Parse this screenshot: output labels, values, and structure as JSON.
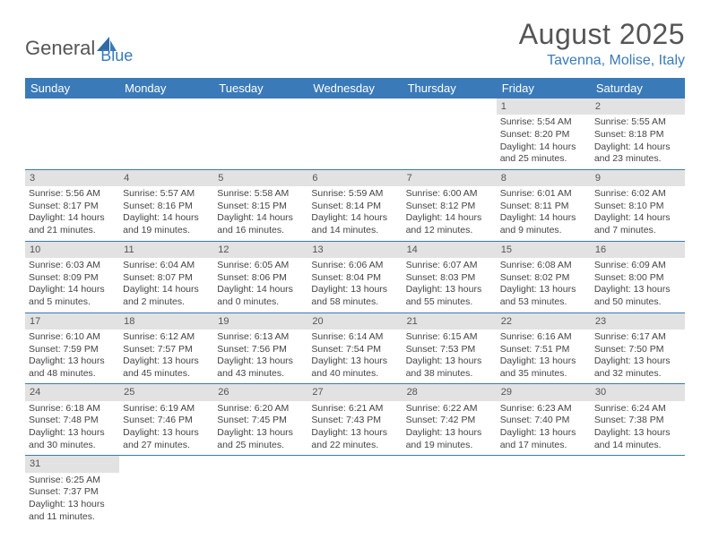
{
  "logo": {
    "text1": "General",
    "text2": "Blue"
  },
  "title": "August 2025",
  "location": "Tavenna, Molise, Italy",
  "colors": {
    "header_bg": "#3a7ab8",
    "header_fg": "#ffffff",
    "daynum_bg": "#e2e2e2",
    "row_divider": "#3a7ab8",
    "text": "#444444",
    "logo_blue": "#3a7ab8"
  },
  "weekdays": [
    "Sunday",
    "Monday",
    "Tuesday",
    "Wednesday",
    "Thursday",
    "Friday",
    "Saturday"
  ],
  "weeks": [
    [
      null,
      null,
      null,
      null,
      null,
      {
        "n": "1",
        "sr": "Sunrise: 5:54 AM",
        "ss": "Sunset: 8:20 PM",
        "dl": "Daylight: 14 hours and 25 minutes."
      },
      {
        "n": "2",
        "sr": "Sunrise: 5:55 AM",
        "ss": "Sunset: 8:18 PM",
        "dl": "Daylight: 14 hours and 23 minutes."
      }
    ],
    [
      {
        "n": "3",
        "sr": "Sunrise: 5:56 AM",
        "ss": "Sunset: 8:17 PM",
        "dl": "Daylight: 14 hours and 21 minutes."
      },
      {
        "n": "4",
        "sr": "Sunrise: 5:57 AM",
        "ss": "Sunset: 8:16 PM",
        "dl": "Daylight: 14 hours and 19 minutes."
      },
      {
        "n": "5",
        "sr": "Sunrise: 5:58 AM",
        "ss": "Sunset: 8:15 PM",
        "dl": "Daylight: 14 hours and 16 minutes."
      },
      {
        "n": "6",
        "sr": "Sunrise: 5:59 AM",
        "ss": "Sunset: 8:14 PM",
        "dl": "Daylight: 14 hours and 14 minutes."
      },
      {
        "n": "7",
        "sr": "Sunrise: 6:00 AM",
        "ss": "Sunset: 8:12 PM",
        "dl": "Daylight: 14 hours and 12 minutes."
      },
      {
        "n": "8",
        "sr": "Sunrise: 6:01 AM",
        "ss": "Sunset: 8:11 PM",
        "dl": "Daylight: 14 hours and 9 minutes."
      },
      {
        "n": "9",
        "sr": "Sunrise: 6:02 AM",
        "ss": "Sunset: 8:10 PM",
        "dl": "Daylight: 14 hours and 7 minutes."
      }
    ],
    [
      {
        "n": "10",
        "sr": "Sunrise: 6:03 AM",
        "ss": "Sunset: 8:09 PM",
        "dl": "Daylight: 14 hours and 5 minutes."
      },
      {
        "n": "11",
        "sr": "Sunrise: 6:04 AM",
        "ss": "Sunset: 8:07 PM",
        "dl": "Daylight: 14 hours and 2 minutes."
      },
      {
        "n": "12",
        "sr": "Sunrise: 6:05 AM",
        "ss": "Sunset: 8:06 PM",
        "dl": "Daylight: 14 hours and 0 minutes."
      },
      {
        "n": "13",
        "sr": "Sunrise: 6:06 AM",
        "ss": "Sunset: 8:04 PM",
        "dl": "Daylight: 13 hours and 58 minutes."
      },
      {
        "n": "14",
        "sr": "Sunrise: 6:07 AM",
        "ss": "Sunset: 8:03 PM",
        "dl": "Daylight: 13 hours and 55 minutes."
      },
      {
        "n": "15",
        "sr": "Sunrise: 6:08 AM",
        "ss": "Sunset: 8:02 PM",
        "dl": "Daylight: 13 hours and 53 minutes."
      },
      {
        "n": "16",
        "sr": "Sunrise: 6:09 AM",
        "ss": "Sunset: 8:00 PM",
        "dl": "Daylight: 13 hours and 50 minutes."
      }
    ],
    [
      {
        "n": "17",
        "sr": "Sunrise: 6:10 AM",
        "ss": "Sunset: 7:59 PM",
        "dl": "Daylight: 13 hours and 48 minutes."
      },
      {
        "n": "18",
        "sr": "Sunrise: 6:12 AM",
        "ss": "Sunset: 7:57 PM",
        "dl": "Daylight: 13 hours and 45 minutes."
      },
      {
        "n": "19",
        "sr": "Sunrise: 6:13 AM",
        "ss": "Sunset: 7:56 PM",
        "dl": "Daylight: 13 hours and 43 minutes."
      },
      {
        "n": "20",
        "sr": "Sunrise: 6:14 AM",
        "ss": "Sunset: 7:54 PM",
        "dl": "Daylight: 13 hours and 40 minutes."
      },
      {
        "n": "21",
        "sr": "Sunrise: 6:15 AM",
        "ss": "Sunset: 7:53 PM",
        "dl": "Daylight: 13 hours and 38 minutes."
      },
      {
        "n": "22",
        "sr": "Sunrise: 6:16 AM",
        "ss": "Sunset: 7:51 PM",
        "dl": "Daylight: 13 hours and 35 minutes."
      },
      {
        "n": "23",
        "sr": "Sunrise: 6:17 AM",
        "ss": "Sunset: 7:50 PM",
        "dl": "Daylight: 13 hours and 32 minutes."
      }
    ],
    [
      {
        "n": "24",
        "sr": "Sunrise: 6:18 AM",
        "ss": "Sunset: 7:48 PM",
        "dl": "Daylight: 13 hours and 30 minutes."
      },
      {
        "n": "25",
        "sr": "Sunrise: 6:19 AM",
        "ss": "Sunset: 7:46 PM",
        "dl": "Daylight: 13 hours and 27 minutes."
      },
      {
        "n": "26",
        "sr": "Sunrise: 6:20 AM",
        "ss": "Sunset: 7:45 PM",
        "dl": "Daylight: 13 hours and 25 minutes."
      },
      {
        "n": "27",
        "sr": "Sunrise: 6:21 AM",
        "ss": "Sunset: 7:43 PM",
        "dl": "Daylight: 13 hours and 22 minutes."
      },
      {
        "n": "28",
        "sr": "Sunrise: 6:22 AM",
        "ss": "Sunset: 7:42 PM",
        "dl": "Daylight: 13 hours and 19 minutes."
      },
      {
        "n": "29",
        "sr": "Sunrise: 6:23 AM",
        "ss": "Sunset: 7:40 PM",
        "dl": "Daylight: 13 hours and 17 minutes."
      },
      {
        "n": "30",
        "sr": "Sunrise: 6:24 AM",
        "ss": "Sunset: 7:38 PM",
        "dl": "Daylight: 13 hours and 14 minutes."
      }
    ],
    [
      {
        "n": "31",
        "sr": "Sunrise: 6:25 AM",
        "ss": "Sunset: 7:37 PM",
        "dl": "Daylight: 13 hours and 11 minutes."
      },
      null,
      null,
      null,
      null,
      null,
      null
    ]
  ]
}
